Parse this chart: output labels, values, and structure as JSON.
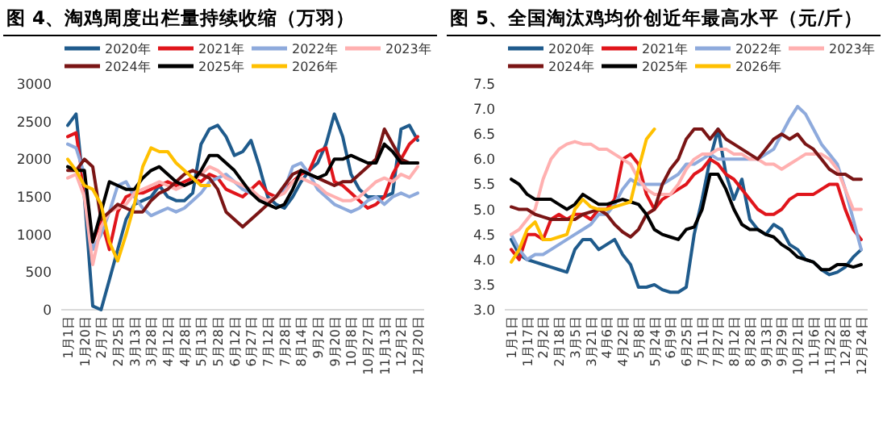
{
  "chart_data": [
    {
      "type": "line",
      "title": "图 4、淘鸡周度出栏量持续收缩（万羽）",
      "legend": "top",
      "categories": [
        "1月1日",
        null,
        "1月20日",
        null,
        "2月7日",
        null,
        "2月25日",
        null,
        "3月13日",
        null,
        "3月28日",
        null,
        "4月12日",
        null,
        "4月28日",
        null,
        "5月13日",
        null,
        "5月28日",
        null,
        "6月12日",
        null,
        "6月27日",
        null,
        "7月12日",
        null,
        "7月28日",
        null,
        "8月14日",
        null,
        "9月2日",
        null,
        "9月20日",
        null,
        "10月8日",
        null,
        "10月27日",
        null,
        "11月13日",
        null,
        "12月2日",
        null,
        "12月20日"
      ],
      "ylim": [
        0,
        3000
      ],
      "yticks": [
        0,
        500,
        1000,
        1500,
        2000,
        2500,
        3000
      ],
      "series": [
        {
          "name": "2020年",
          "color": "#1f5b8c",
          "values": [
            2450,
            2600,
            1500,
            50,
            0,
            400,
            800,
            1200,
            1400,
            1450,
            1500,
            1650,
            1500,
            1450,
            1450,
            1550,
            2200,
            2400,
            2450,
            2300,
            2050,
            2100,
            2250,
            1900,
            1500,
            1400,
            1350,
            1500,
            1700,
            1850,
            1950,
            2200,
            2600,
            2300,
            1800,
            1600,
            1500,
            1500,
            1500,
            1550,
            2400,
            2450,
            2250
          ]
        },
        {
          "name": "2021年",
          "color": "#e0151b",
          "values": [
            2300,
            2350,
            1600,
            900,
            1200,
            800,
            1300,
            1500,
            1550,
            1550,
            1600,
            1650,
            1700,
            1650,
            1700,
            1750,
            1700,
            1800,
            1750,
            1600,
            1550,
            1500,
            1600,
            1700,
            1550,
            1500,
            1600,
            1700,
            1800,
            1850,
            2100,
            2150,
            1700,
            1650,
            1550,
            1450,
            1350,
            1400,
            1500,
            1800,
            2000,
            2200,
            2300
          ]
        },
        {
          "name": "2022年",
          "color": "#8eaadc",
          "values": [
            2200,
            2150,
            1800,
            800,
            1000,
            1300,
            1650,
            1700,
            1500,
            1350,
            1250,
            1300,
            1350,
            1300,
            1350,
            1450,
            1550,
            1700,
            1750,
            1800,
            1700,
            1600,
            1550,
            1500,
            1450,
            1500,
            1600,
            1900,
            1950,
            1800,
            1600,
            1500,
            1400,
            1350,
            1300,
            1350,
            1450,
            1500,
            1400,
            1500,
            1550,
            1500,
            1550
          ]
        },
        {
          "name": "2023年",
          "color": "#ffb0b0",
          "values": [
            1750,
            1800,
            1500,
            600,
            1100,
            1300,
            1350,
            1400,
            1550,
            1600,
            1650,
            1700,
            1650,
            1600,
            1650,
            1700,
            1800,
            1900,
            1850,
            1750,
            1700,
            1650,
            1600,
            1500,
            1450,
            1500,
            1550,
            1700,
            1750,
            1700,
            1650,
            1550,
            1500,
            1450,
            1450,
            1500,
            1600,
            1700,
            1750,
            1700,
            1800,
            1750,
            1900
          ]
        },
        {
          "name": "2024年",
          "color": "#7a1515",
          "values": [
            1850,
            1850,
            2000,
            1900,
            1200,
            1300,
            1400,
            1350,
            1300,
            1300,
            1450,
            1550,
            1600,
            1700,
            1800,
            1850,
            1800,
            1750,
            1600,
            1300,
            1200,
            1100,
            1200,
            1300,
            1400,
            1500,
            1650,
            1800,
            1850,
            1800,
            1750,
            1700,
            1650,
            1700,
            1700,
            1800,
            1900,
            2000,
            2400,
            2200,
            2000,
            1950,
            1950
          ]
        },
        {
          "name": "2025年",
          "color": "#000000",
          "values": [
            1900,
            1850,
            1850,
            900,
            1300,
            1700,
            1650,
            1600,
            1600,
            1750,
            1850,
            1900,
            1800,
            1700,
            1650,
            1700,
            1850,
            2050,
            2050,
            1950,
            1850,
            1700,
            1550,
            1450,
            1400,
            1350,
            1400,
            1600,
            1850,
            1800,
            1750,
            1800,
            2000,
            2000,
            2050,
            2000,
            1950,
            1950,
            2200,
            2100,
            1950,
            1950,
            1950
          ]
        },
        {
          "name": "2026年",
          "color": "#ffc000",
          "values": [
            2000,
            1850,
            1650,
            1600,
            1400,
            900,
            650,
            1000,
            1400,
            1900,
            2150,
            2100,
            2100,
            1950,
            1850,
            1750,
            1650,
            1650,
            null,
            null,
            null,
            null,
            null,
            null,
            null,
            null,
            null,
            null,
            null,
            null,
            null,
            null,
            null,
            null,
            null,
            null,
            null,
            null,
            null,
            null,
            null,
            null,
            null
          ]
        }
      ]
    },
    {
      "type": "line",
      "title": "图 5、全国淘汰鸡均价创近年最高水平（元/斤）",
      "legend": "top",
      "categories": [
        "1月1日",
        null,
        "1月17日",
        null,
        "2月2日",
        null,
        "2月18日",
        null,
        "3月5日",
        null,
        "3月21日",
        null,
        "4月6日",
        null,
        "4月22日",
        null,
        "5月8日",
        null,
        "5月24日",
        null,
        "6月9日",
        null,
        "6月25日",
        null,
        "7月11日",
        null,
        "7月27日",
        null,
        "8月12日",
        null,
        "8月28日",
        null,
        "9月13日",
        null,
        "9月29日",
        null,
        "10月21日",
        null,
        "11月6日",
        null,
        "11月22日",
        null,
        "12月8日",
        null,
        "12月24日"
      ],
      "ylim": [
        3,
        7.5
      ],
      "yticks": [
        {
          "value": 3,
          "label": "3.0"
        },
        3.5,
        {
          "value": 4,
          "label": "4.0"
        },
        4.5,
        {
          "value": 5,
          "label": "5.0"
        },
        5.5,
        {
          "value": 6,
          "label": "6.0"
        },
        6.5,
        {
          "value": 7,
          "label": "7.0"
        },
        7.5
      ],
      "series": [
        {
          "name": "2020年",
          "color": "#1f5b8c",
          "values": [
            4.4,
            4.1,
            4.0,
            3.95,
            3.9,
            3.85,
            3.8,
            3.75,
            4.2,
            4.4,
            4.4,
            4.2,
            4.3,
            4.4,
            4.1,
            3.9,
            3.45,
            3.45,
            3.5,
            3.4,
            3.35,
            3.35,
            3.45,
            4.5,
            5.2,
            6.0,
            6.6,
            5.7,
            5.2,
            5.6,
            4.8,
            4.6,
            4.5,
            4.7,
            4.6,
            4.3,
            4.2,
            4.0,
            3.95,
            3.8,
            3.7,
            3.75,
            3.85,
            4.05,
            4.2
          ]
        },
        {
          "name": "2021年",
          "color": "#e0151b",
          "values": [
            4.2,
            4.0,
            4.5,
            4.5,
            4.4,
            4.8,
            4.9,
            4.8,
            4.9,
            4.9,
            4.8,
            5.0,
            5.0,
            5.2,
            6.0,
            6.1,
            5.9,
            5.3,
            5.0,
            5.2,
            5.3,
            5.4,
            5.5,
            5.7,
            5.8,
            6.0,
            5.9,
            5.7,
            5.6,
            5.4,
            5.2,
            5.0,
            4.9,
            4.9,
            5.0,
            5.2,
            5.3,
            5.3,
            5.3,
            5.4,
            5.5,
            5.5,
            5.0,
            4.6,
            4.4
          ]
        },
        {
          "name": "2022年",
          "color": "#8eaadc",
          "values": [
            4.5,
            4.2,
            4.0,
            4.1,
            4.1,
            4.2,
            4.3,
            4.4,
            4.5,
            4.6,
            4.7,
            4.9,
            4.9,
            5.1,
            5.4,
            5.6,
            5.5,
            5.5,
            5.5,
            5.5,
            5.6,
            5.7,
            5.9,
            5.9,
            6.0,
            6.1,
            6.0,
            6.0,
            6.0,
            6.0,
            6.0,
            6.0,
            6.1,
            6.2,
            6.5,
            6.8,
            7.05,
            6.9,
            6.6,
            6.3,
            6.1,
            5.9,
            5.4,
            4.8,
            4.2
          ]
        },
        {
          "name": "2023年",
          "color": "#ffb0b0",
          "values": [
            4.5,
            4.6,
            4.8,
            5.0,
            5.6,
            6.0,
            6.2,
            6.3,
            6.35,
            6.3,
            6.3,
            6.2,
            6.2,
            6.1,
            6.0,
            5.9,
            5.6,
            5.4,
            5.3,
            5.3,
            5.3,
            5.5,
            5.8,
            6.0,
            6.1,
            6.1,
            6.2,
            6.2,
            6.1,
            6.1,
            6.0,
            6.0,
            5.9,
            5.9,
            5.8,
            5.9,
            6.0,
            6.1,
            6.1,
            6.1,
            6.0,
            5.8,
            5.4,
            5.0,
            5.0
          ]
        },
        {
          "name": "2024年",
          "color": "#7a1515",
          "values": [
            5.05,
            5.0,
            5.0,
            4.9,
            4.85,
            4.8,
            4.8,
            4.8,
            4.8,
            4.9,
            4.95,
            5.0,
            4.9,
            4.7,
            4.55,
            4.45,
            4.6,
            4.9,
            5.0,
            5.5,
            5.8,
            6.0,
            6.4,
            6.6,
            6.6,
            6.4,
            6.6,
            6.4,
            6.3,
            6.2,
            6.1,
            6.0,
            6.2,
            6.4,
            6.5,
            6.4,
            6.5,
            6.3,
            6.2,
            6.0,
            5.8,
            5.7,
            5.7,
            5.6,
            5.6
          ]
        },
        {
          "name": "2025年",
          "color": "#000000",
          "values": [
            5.6,
            5.5,
            5.3,
            5.2,
            5.2,
            5.2,
            5.1,
            5.0,
            5.1,
            5.3,
            5.2,
            5.1,
            5.1,
            5.15,
            5.2,
            5.15,
            5.1,
            4.9,
            4.6,
            4.5,
            4.45,
            4.4,
            4.6,
            4.65,
            5.0,
            5.7,
            5.7,
            5.4,
            5.0,
            4.7,
            4.6,
            4.6,
            4.5,
            4.45,
            4.3,
            4.2,
            4.05,
            4.0,
            3.95,
            3.8,
            3.8,
            3.9,
            3.9,
            3.85,
            3.9
          ]
        },
        {
          "name": "2026年",
          "color": "#ffc000",
          "values": [
            3.95,
            4.2,
            4.6,
            4.75,
            4.4,
            4.4,
            4.45,
            4.5,
            5.0,
            5.2,
            5.05,
            5.0,
            5.0,
            5.05,
            5.1,
            5.15,
            5.8,
            6.4,
            6.6,
            null,
            null,
            null,
            null,
            null,
            null,
            null,
            null,
            null,
            null,
            null,
            null,
            null,
            null,
            null,
            null,
            null,
            null,
            null,
            null,
            null,
            null,
            null,
            null,
            null,
            null
          ]
        }
      ]
    }
  ]
}
